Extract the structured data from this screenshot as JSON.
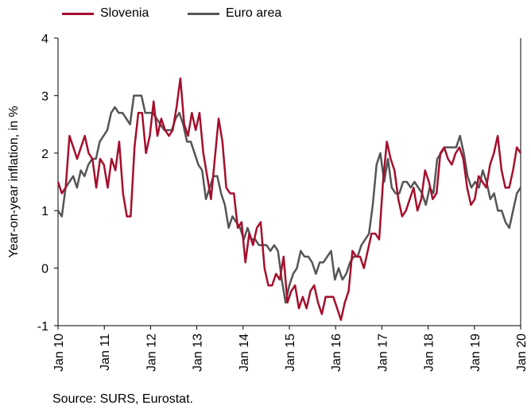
{
  "chart_data": {
    "type": "line",
    "ylabel": "Year-on-year inflation, in %",
    "ylim": [
      -1,
      4
    ],
    "yticks": [
      "-1",
      "0",
      "1",
      "2",
      "3",
      "4"
    ],
    "x_tick_labels": [
      "Jan 10",
      "Jan 11",
      "Jan 12",
      "Jan 13",
      "Jan 14",
      "Jan 15",
      "Jan 16",
      "Jan 17",
      "Jan 18",
      "Jan 19",
      "Jan 20"
    ],
    "x_start": "2010-01",
    "x_end": "2020-01",
    "grid": false,
    "legend_position": "top-left",
    "series": [
      {
        "name": "Slovenia",
        "color": "#a50f2d",
        "values": [
          1.5,
          1.3,
          1.4,
          2.3,
          2.1,
          1.9,
          2.1,
          2.3,
          2.0,
          1.9,
          1.4,
          1.9,
          1.8,
          1.4,
          1.9,
          1.7,
          2.2,
          1.3,
          0.9,
          0.9,
          2.1,
          2.7,
          2.7,
          2.0,
          2.3,
          2.9,
          2.3,
          2.6,
          2.4,
          2.3,
          2.4,
          2.8,
          3.3,
          2.5,
          2.3,
          2.7,
          2.4,
          2.7,
          2.0,
          1.6,
          1.2,
          1.9,
          2.6,
          2.2,
          1.4,
          1.3,
          1.3,
          0.7,
          0.8,
          0.1,
          0.6,
          0.4,
          0.7,
          0.8,
          0.0,
          -0.3,
          -0.3,
          -0.1,
          -0.2,
          0.2,
          -0.6,
          -0.4,
          -0.3,
          -0.7,
          -0.5,
          -0.7,
          -0.4,
          -0.3,
          -0.6,
          -0.8,
          -0.5,
          -0.5,
          -0.5,
          -0.7,
          -0.9,
          -0.6,
          -0.4,
          0.3,
          0.2,
          0.2,
          0.0,
          0.3,
          0.6,
          0.6,
          0.5,
          1.5,
          2.2,
          1.9,
          1.7,
          1.2,
          0.9,
          1.0,
          1.2,
          1.4,
          1.0,
          1.2,
          1.7,
          1.5,
          1.2,
          1.3,
          2.0,
          2.1,
          1.9,
          1.8,
          2.0,
          2.1,
          1.9,
          1.4,
          1.1,
          1.2,
          1.6,
          1.5,
          1.4,
          1.8,
          2.0,
          2.3,
          1.7,
          1.4,
          1.4,
          1.7,
          2.1,
          2.0
        ]
      },
      {
        "name": "Euro area",
        "color": "#555555",
        "values": [
          1.0,
          0.9,
          1.4,
          1.5,
          1.6,
          1.4,
          1.7,
          1.6,
          1.8,
          1.9,
          1.9,
          2.2,
          2.3,
          2.4,
          2.7,
          2.8,
          2.7,
          2.7,
          2.6,
          2.5,
          3.0,
          3.0,
          3.0,
          2.7,
          2.7,
          2.7,
          2.6,
          2.5,
          2.4,
          2.4,
          2.4,
          2.6,
          2.7,
          2.5,
          2.2,
          2.2,
          2.0,
          1.8,
          1.7,
          1.2,
          1.4,
          1.6,
          1.6,
          1.3,
          1.1,
          0.7,
          0.9,
          0.8,
          0.7,
          0.5,
          0.7,
          0.5,
          0.5,
          0.4,
          0.4,
          0.4,
          0.3,
          0.4,
          0.3,
          -0.2,
          -0.6,
          -0.3,
          -0.1,
          0.0,
          0.3,
          0.2,
          0.2,
          0.1,
          -0.1,
          0.1,
          0.1,
          0.2,
          0.3,
          -0.2,
          0.0,
          -0.2,
          -0.1,
          0.1,
          0.2,
          0.2,
          0.4,
          0.5,
          0.6,
          1.1,
          1.8,
          2.0,
          1.5,
          1.9,
          1.4,
          1.3,
          1.3,
          1.5,
          1.5,
          1.4,
          1.5,
          1.4,
          1.3,
          1.1,
          1.4,
          1.3,
          1.9,
          2.0,
          2.1,
          2.1,
          2.1,
          2.1,
          2.3,
          2.0,
          1.6,
          1.4,
          1.5,
          1.4,
          1.7,
          1.5,
          1.2,
          1.3,
          1.0,
          1.0,
          0.8,
          0.7,
          1.0,
          1.3,
          1.4
        ]
      }
    ]
  },
  "source": "Source: SURS, Eurostat."
}
